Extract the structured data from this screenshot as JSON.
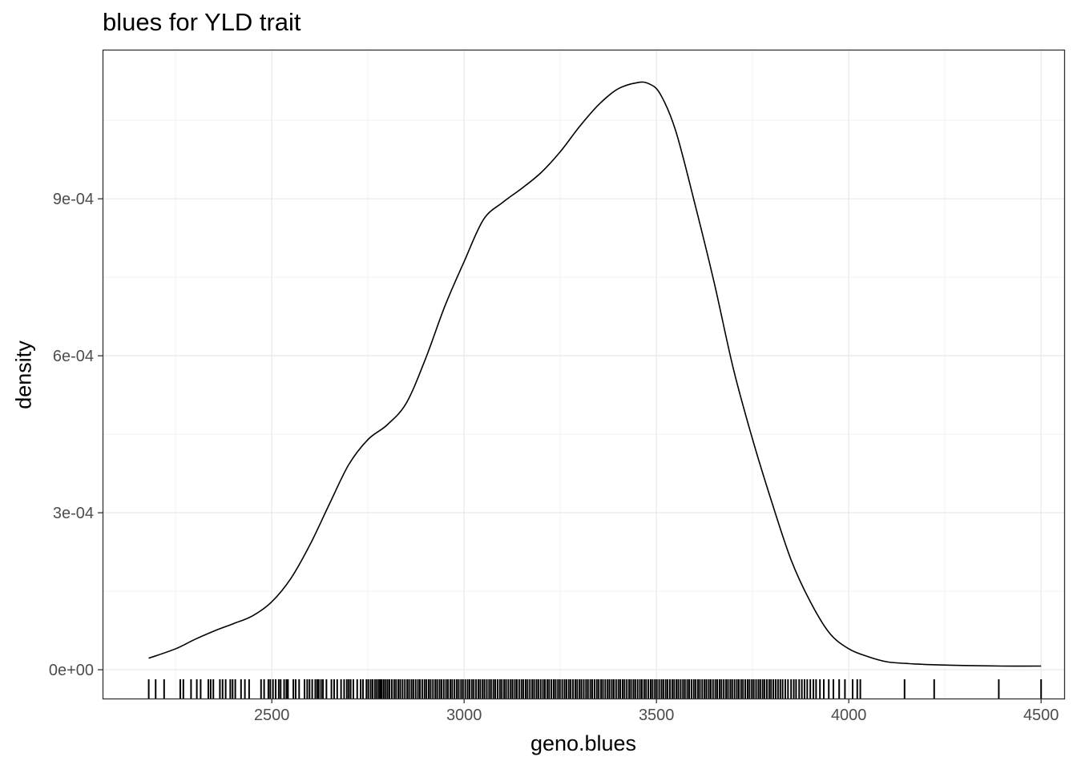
{
  "chart_data": {
    "type": "line",
    "title": "blues for YLD trait",
    "xlabel": "geno.blues",
    "ylabel": "density",
    "xlim": [
      2060,
      4560
    ],
    "ylim": [
      -5.5e-05,
      0.001185
    ],
    "x_ticks": [
      {
        "value": 2500,
        "label": "2500"
      },
      {
        "value": 3000,
        "label": "3000"
      },
      {
        "value": 3500,
        "label": "3500"
      },
      {
        "value": 4000,
        "label": "4000"
      },
      {
        "value": 4500,
        "label": "4500"
      }
    ],
    "y_ticks": [
      {
        "value": 0,
        "label": "0e+00"
      },
      {
        "value": 0.0003,
        "label": "3e-04"
      },
      {
        "value": 0.0006,
        "label": "6e-04"
      },
      {
        "value": 0.0009,
        "label": "9e-04"
      }
    ],
    "grid": true,
    "series": [
      {
        "x": [
          2180,
          2250,
          2300,
          2350,
          2400,
          2450,
          2500,
          2550,
          2600,
          2650,
          2700,
          2750,
          2800,
          2850,
          2900,
          2950,
          3000,
          3050,
          3100,
          3150,
          3200,
          3250,
          3300,
          3350,
          3400,
          3450,
          3480,
          3510,
          3550,
          3600,
          3650,
          3700,
          3750,
          3800,
          3850,
          3900,
          3950,
          4000,
          4050,
          4100,
          4150,
          4200,
          4300,
          4400,
          4500
        ],
        "y": [
          2.2e-05,
          4e-05,
          5.8e-05,
          7.4e-05,
          8.8e-05,
          0.000103,
          0.00013,
          0.000175,
          0.00024,
          0.000317,
          0.000392,
          0.00044,
          0.000468,
          0.00051,
          0.000595,
          0.000695,
          0.00078,
          0.00086,
          0.000893,
          0.00092,
          0.00095,
          0.00099,
          0.001038,
          0.00108,
          0.00111,
          0.001122,
          0.00112,
          0.0011,
          0.00103,
          0.00089,
          0.00074,
          0.000575,
          0.00044,
          0.00032,
          0.00021,
          0.00013,
          7e-05,
          4e-05,
          2.5e-05,
          1.5e-05,
          1.2e-05,
          1e-05,
          8e-06,
          7e-06,
          7e-06
        ]
      }
    ],
    "rug": [
      2180,
      2198,
      2220,
      2262,
      2270,
      2290,
      2305,
      2315,
      2335,
      2341,
      2348,
      2365,
      2372,
      2380,
      2392,
      2398,
      2405,
      2420,
      2430,
      2441,
      2472,
      2480,
      2491,
      2496,
      2503,
      2510,
      2518,
      2523,
      2532,
      2538,
      2542,
      2556,
      2562,
      2571,
      2585,
      2592,
      2598,
      2605,
      2613,
      2618,
      2622,
      2628,
      2633,
      2642,
      2655,
      2662,
      2670,
      2680,
      2688,
      2695,
      2700,
      2705,
      2712,
      2722,
      2731,
      2737,
      2746,
      2751,
      2757,
      2762,
      2768,
      2773,
      2778,
      2782,
      2786,
      2791,
      2796,
      2801,
      2806,
      2812,
      2818,
      2823,
      2829,
      2834,
      2840,
      2846,
      2852,
      2857,
      2863,
      2868,
      2874,
      2880,
      2885,
      2891,
      2897,
      2902,
      2908,
      2913,
      2919,
      2925,
      2930,
      2936,
      2941,
      2947,
      2953,
      2958,
      2964,
      2969,
      2975,
      2981,
      2986,
      2992,
      2997,
      3003,
      3009,
      3014,
      3020,
      3025,
      3031,
      3037,
      3042,
      3048,
      3053,
      3059,
      3065,
      3070,
      3076,
      3081,
      3087,
      3093,
      3098,
      3104,
      3109,
      3115,
      3121,
      3126,
      3132,
      3137,
      3143,
      3149,
      3154,
      3160,
      3165,
      3171,
      3177,
      3182,
      3188,
      3193,
      3199,
      3205,
      3210,
      3216,
      3221,
      3227,
      3233,
      3238,
      3244,
      3249,
      3255,
      3261,
      3266,
      3272,
      3277,
      3283,
      3289,
      3294,
      3300,
      3305,
      3311,
      3317,
      3322,
      3328,
      3333,
      3339,
      3345,
      3350,
      3356,
      3361,
      3367,
      3373,
      3378,
      3384,
      3389,
      3395,
      3401,
      3406,
      3412,
      3417,
      3423,
      3429,
      3434,
      3440,
      3445,
      3451,
      3457,
      3462,
      3468,
      3473,
      3479,
      3485,
      3490,
      3496,
      3501,
      3507,
      3513,
      3518,
      3524,
      3529,
      3535,
      3541,
      3546,
      3552,
      3557,
      3563,
      3569,
      3574,
      3580,
      3585,
      3591,
      3597,
      3602,
      3608,
      3613,
      3619,
      3625,
      3630,
      3636,
      3641,
      3647,
      3653,
      3658,
      3664,
      3669,
      3675,
      3681,
      3686,
      3692,
      3697,
      3703,
      3709,
      3714,
      3720,
      3725,
      3731,
      3737,
      3742,
      3748,
      3753,
      3759,
      3765,
      3770,
      3776,
      3781,
      3787,
      3793,
      3798,
      3804,
      3810,
      3816,
      3822,
      3828,
      3835,
      3842,
      3850,
      3857,
      3863,
      3871,
      3878,
      3885,
      3892,
      3900,
      3908,
      3915,
      3925,
      3935,
      3948,
      3960,
      3975,
      3990,
      4010,
      4022,
      4030,
      4145,
      4222,
      4390,
      4500
    ]
  }
}
